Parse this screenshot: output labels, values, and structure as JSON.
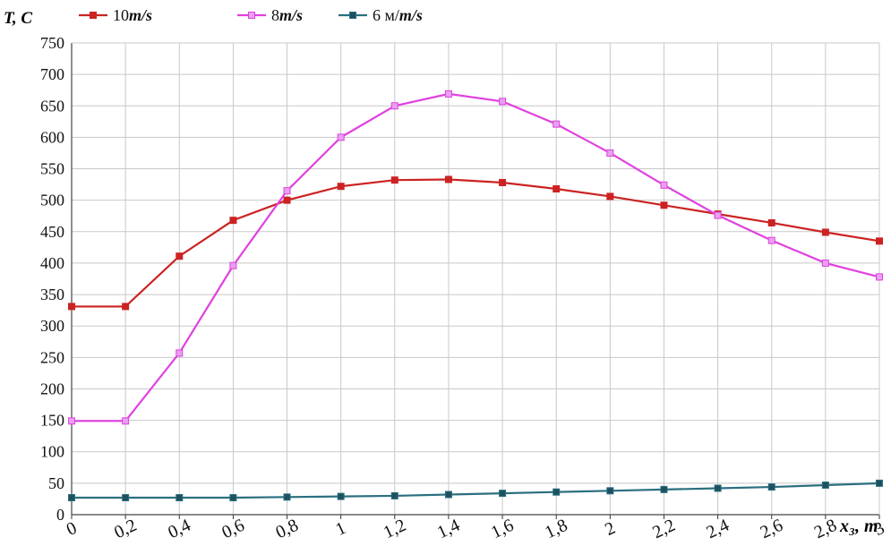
{
  "chart_data": {
    "type": "line",
    "ylabel": "T, C",
    "xlabel": "x₃, m",
    "x": [
      "0",
      "0,2",
      "0,4",
      "0,6",
      "0,8",
      "1",
      "1,2",
      "1,4",
      "1,6",
      "1,8",
      "2",
      "2,2",
      "2,4",
      "2,6",
      "2,8",
      "3"
    ],
    "y_ticks": [
      0,
      50,
      100,
      150,
      200,
      250,
      300,
      350,
      400,
      450,
      500,
      550,
      600,
      650,
      700,
      750
    ],
    "ylim": [
      0,
      750
    ],
    "grid": true,
    "legend_position": "top-left",
    "series": [
      {
        "name": "10m/s",
        "legend_num": "10",
        "legend_unit": "m/s",
        "color": "#cc2222",
        "marker_fill": "#cc2222",
        "values": [
          331,
          331,
          411,
          468,
          500,
          522,
          532,
          533,
          528,
          518,
          506,
          492,
          478,
          464,
          449,
          435
        ]
      },
      {
        "name": "8m/s",
        "legend_num": "8",
        "legend_unit": "m/s",
        "color": "#e040e0",
        "marker_fill": "#e8a0f0",
        "values": [
          149,
          149,
          257,
          396,
          515,
          600,
          650,
          669,
          657,
          621,
          575,
          524,
          476,
          436,
          400,
          378
        ]
      },
      {
        "name": "6 м/m/s",
        "legend_num": "6 м/",
        "legend_unit": "m/s",
        "color": "#2a6f80",
        "marker_fill": "#1e5060",
        "values": [
          27,
          27,
          27,
          27,
          28,
          29,
          30,
          32,
          34,
          36,
          38,
          40,
          42,
          44,
          47,
          50
        ]
      }
    ]
  }
}
